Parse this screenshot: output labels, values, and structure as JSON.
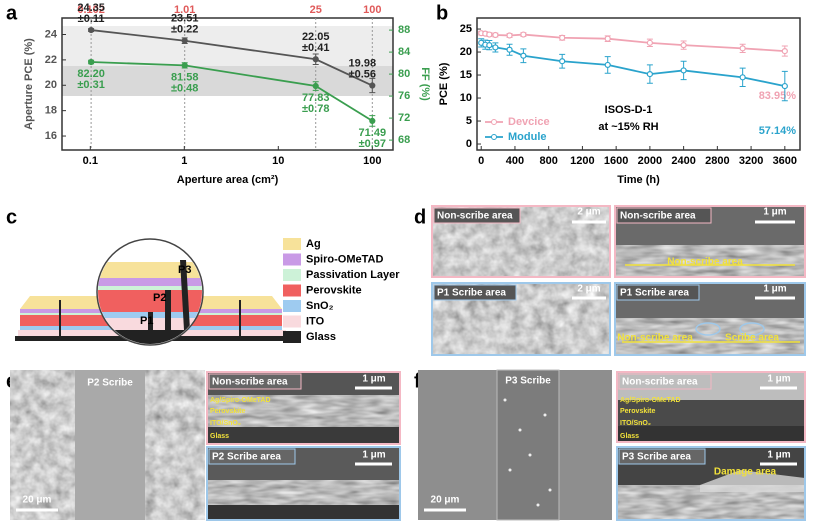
{
  "panel_labels": [
    "a",
    "b",
    "c",
    "d",
    "e",
    "f"
  ],
  "chart_data": [
    {
      "type": "line",
      "xscale": "log",
      "xlim": [
        0.05,
        166
      ],
      "xticks": [
        0.1,
        1,
        10,
        100
      ],
      "ylim": [
        14.9,
        25.3
      ],
      "yticks": [
        16,
        18,
        20,
        22,
        24
      ],
      "y2lim": [
        66.2,
        90.2
      ],
      "y2ticks": [
        68,
        72,
        76,
        80,
        84,
        88
      ],
      "xlabel": "Aperture area (cm²)",
      "ylabel": "Aperture PCE (%)",
      "y2label": "FF (%)",
      "x": [
        0.102,
        1.01,
        25,
        100
      ],
      "top_axis_color": "#e05a5a",
      "x_guides": true,
      "series": [
        {
          "color": "#555555",
          "values": [
            24.35,
            23.51,
            22.05,
            19.98
          ],
          "errors": [
            0.11,
            0.22,
            0.41,
            0.56
          ],
          "error_labels": [
            "±0.11",
            "±0.22",
            "±0.41",
            "±0.56"
          ]
        },
        {
          "color": "#3a9e4f",
          "axis": "y2",
          "values": [
            82.2,
            81.58,
            77.83,
            71.49
          ],
          "value_labels": [
            "82.20",
            "81.58",
            "77.83",
            "71.49"
          ],
          "errors": [
            0.31,
            0.48,
            0.78,
            0.97
          ],
          "error_labels": [
            "±0.31",
            "±0.48",
            "±0.78",
            "±0.97"
          ]
        }
      ]
    },
    {
      "type": "line",
      "xlim": [
        -50,
        3780
      ],
      "xticks": [
        0,
        400,
        800,
        1200,
        1600,
        2000,
        2400,
        2800,
        3200,
        3600
      ],
      "ylim": [
        -1.3,
        27.4
      ],
      "yticks": [
        0,
        5,
        10,
        15,
        20,
        25
      ],
      "xlabel": "Time (h)",
      "ylabel": "PCE (%)",
      "legend": "lower left",
      "annotation": [
        "ISOS-D-1",
        "at ~15% RH"
      ],
      "x": [
        0,
        48,
        96,
        168,
        336,
        500,
        960,
        1500,
        2000,
        2400,
        3100,
        3600
      ],
      "series": [
        {
          "name": "Devcice",
          "color": "#f0a3b3",
          "values": [
            24.1,
            24,
            23.8,
            23.7,
            23.6,
            23.8,
            23.1,
            22.9,
            22,
            21.5,
            20.8,
            20.2
          ],
          "errors": [
            0.4,
            0.4,
            0.4,
            0.4,
            0.4,
            0.4,
            0.5,
            0.6,
            0.8,
            0.9,
            0.9,
            1.1
          ],
          "end_label": "83.95%"
        },
        {
          "name": "Module",
          "color": "#2aa3cc",
          "values": [
            22,
            21.6,
            21.5,
            21,
            20.5,
            19.2,
            18,
            17.2,
            15.2,
            16,
            14.5,
            12.6
          ],
          "errors": [
            0.9,
            1,
            1,
            1,
            1.2,
            1.5,
            1.5,
            1.8,
            2,
            2,
            2,
            3.2
          ],
          "end_label": "57.14%"
        }
      ]
    }
  ],
  "diagram": {
    "legend": [
      {
        "label": "Ag",
        "color": "#f7e29a"
      },
      {
        "label": "Spiro-OMeTAD",
        "color": "#c99ae6"
      },
      {
        "label": "Passivation Layer",
        "color": "#cdf2d8"
      },
      {
        "label": "Perovskite",
        "color": "#f0605f"
      },
      {
        "label": "SnO₂",
        "color": "#9ecbf0"
      },
      {
        "label": "ITO",
        "color": "#f9dade"
      },
      {
        "label": "Glass",
        "color": "#222222"
      }
    ],
    "scribes": [
      "P1",
      "P2",
      "P3"
    ]
  },
  "sem": {
    "d": {
      "top_left": {
        "label": "Non-scribe area",
        "scale": "2 μm"
      },
      "top_right": {
        "label": "Non-scribe area",
        "scale": "1 μm",
        "note": "Non-scribe area"
      },
      "bottom_left": {
        "label": "P1 Scribe area",
        "scale": "2 μm"
      },
      "bottom_right": {
        "label": "P1 Scribe area",
        "scale": "1 μm",
        "notes": [
          "Non-scribe area",
          "Scribe area"
        ]
      }
    },
    "e": {
      "plan_label": "P2 Scribe",
      "plan_scale": "20 μm",
      "top": {
        "label": "Non-scribe area",
        "scale": "1 μm",
        "layers": [
          "Ag/Spiro-OMeTAD",
          "Perovskite",
          "ITO/SnO₂",
          "Glass"
        ]
      },
      "bottom": {
        "label": "P2 Scribe area",
        "scale": "1 μm"
      }
    },
    "f": {
      "plan_label": "P3 Scribe",
      "plan_scale": "20 μm",
      "top": {
        "label": "Non-scribe area",
        "scale": "1 μm",
        "layers": [
          "Ag/Spiro-OMeTAD",
          "Perovskite",
          "ITO/SnO₂",
          "Glass"
        ]
      },
      "bottom": {
        "label": "P3 Scribe area",
        "scale": "1 μm",
        "note": "Damage area"
      }
    }
  }
}
